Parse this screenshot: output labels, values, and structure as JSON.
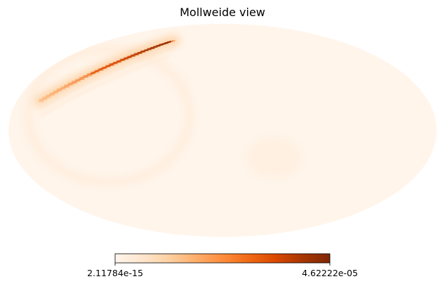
{
  "chart_data": {
    "type": "heatmap",
    "projection": "mollweide",
    "title": "Mollweide view",
    "colormap": "Oranges",
    "colormap_stops": [
      "#fff5eb",
      "#fee6ce",
      "#fdd0a2",
      "#fdae6b",
      "#fd8d3c",
      "#f16913",
      "#d94801",
      "#a63603",
      "#7f2704"
    ],
    "colorbar": {
      "min": 2.11784e-15,
      "max": 4.62222e-05,
      "min_label": "2.11784e-15",
      "max_label": "4.62222e-05",
      "orientation": "horizontal",
      "placement": "bottom"
    },
    "features": [
      {
        "kind": "arc",
        "description_level": 1.0,
        "lon_range": [
          -160,
          -60
        ],
        "lat_range": [
          15,
          70
        ]
      },
      {
        "kind": "faint-ring",
        "description_level": 0.05
      }
    ],
    "background_level": 0.0
  }
}
